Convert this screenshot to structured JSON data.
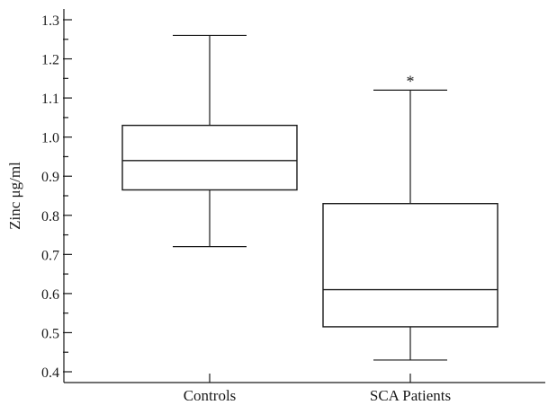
{
  "chart_data": {
    "type": "box",
    "title": "",
    "xlabel": "",
    "ylabel": "Zinc μg/ml",
    "ylim": [
      0.4,
      1.3
    ],
    "yticks": [
      "0.4",
      "0.5",
      "0.6",
      "0.7",
      "0.8",
      "0.9",
      "1.0",
      "1.1",
      "1.2",
      "1.3"
    ],
    "categories": [
      "Controls",
      "SCA Patients"
    ],
    "boxes": [
      {
        "category": "Controls",
        "whisker_low": 0.72,
        "q1": 0.865,
        "median": 0.94,
        "q3": 1.03,
        "whisker_high": 1.26,
        "annotation": ""
      },
      {
        "category": "SCA Patients",
        "whisker_low": 0.43,
        "q1": 0.515,
        "median": 0.61,
        "q3": 0.83,
        "whisker_high": 1.12,
        "annotation": "*"
      }
    ],
    "grid": false,
    "colors": {
      "stroke": "#1a1a1a",
      "fill": "#ffffff"
    }
  }
}
